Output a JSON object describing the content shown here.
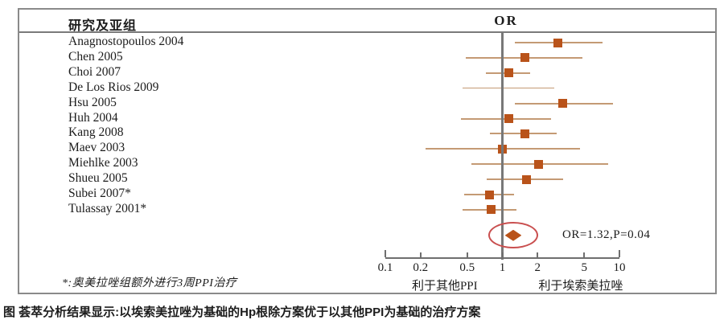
{
  "header": {
    "study_column": "研究及亚组",
    "effect_column": "OR"
  },
  "chart_data": {
    "type": "forest",
    "x_scale": "log10",
    "x_range": [
      0.1,
      10
    ],
    "x_ticks": [
      0.1,
      0.2,
      0.5,
      1,
      2,
      5,
      10
    ],
    "null_line": 1,
    "effect_measure": "OR",
    "studies": [
      {
        "name": "Anagnostopoulos 2004",
        "or": 3.0,
        "ci_low": 1.28,
        "ci_high": 7.2
      },
      {
        "name": "Chen 2005",
        "or": 1.55,
        "ci_low": 0.49,
        "ci_high": 4.8
      },
      {
        "name": "Choi 2007",
        "or": 1.13,
        "ci_low": 0.72,
        "ci_high": 1.73
      },
      {
        "name": "De Los Rios 2009",
        "or": null,
        "ci_low": 0.46,
        "ci_high": 2.8
      },
      {
        "name": "Hsu 2005",
        "or": 3.25,
        "ci_low": 1.28,
        "ci_high": 8.8
      },
      {
        "name": "Huh 2004",
        "or": 1.13,
        "ci_low": 0.44,
        "ci_high": 2.6
      },
      {
        "name": "Kang 2008",
        "or": 1.55,
        "ci_low": 0.78,
        "ci_high": 2.9
      },
      {
        "name": "Maev 2003",
        "or": 1.0,
        "ci_low": 0.22,
        "ci_high": 4.6
      },
      {
        "name": "Miehlke 2003",
        "or": 2.05,
        "ci_low": 0.54,
        "ci_high": 8.0
      },
      {
        "name": "Shueu 2005",
        "or": 1.6,
        "ci_low": 0.73,
        "ci_high": 3.3
      },
      {
        "name": "Subei 2007*",
        "or": 0.77,
        "ci_low": 0.47,
        "ci_high": 1.26
      },
      {
        "name": "Tulassay 2001*",
        "or": 0.8,
        "ci_low": 0.46,
        "ci_high": 1.32
      }
    ],
    "overall": {
      "or": 1.32,
      "p": "0.04",
      "label": "OR=1.32,P=0.04",
      "diamond_low": 1.05,
      "diamond_high": 1.46,
      "circled": true
    },
    "favors_left": "利于其他PPI",
    "favors_right": "利于埃索美拉唑"
  },
  "footnote": "*:奥美拉唑组额外进行3周PPI治疗",
  "caption": "图 荟萃分析结果显示:以埃索美拉唑为基础的Hp根除方案优于以其他PPI为基础的治疗方案",
  "colors": {
    "marker": "#b9531a",
    "ci_line": "#c49a74",
    "axis": "#6f6f6f",
    "null_line": "#787878",
    "ellipse": "#c94f4f",
    "border": "#8a8a8a"
  }
}
